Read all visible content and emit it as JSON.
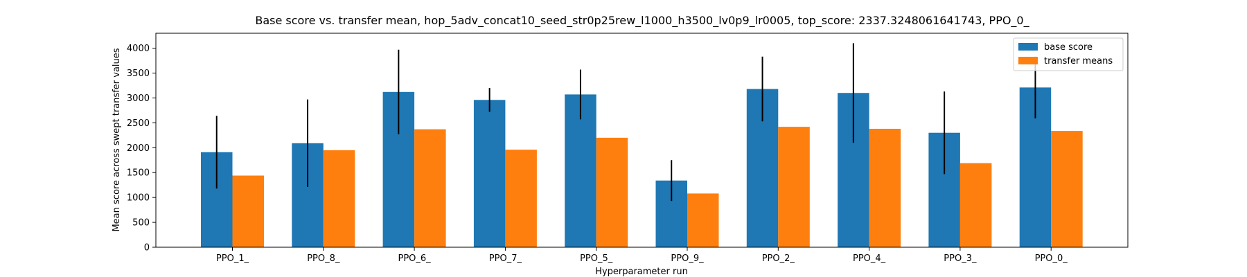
{
  "chart_data": {
    "type": "bar",
    "title": "Base score vs. transfer mean, hop_5adv_concat10_seed_str0p25rew_l1000_h3500_lv0p9_lr0005, top_score: 2337.3248061641743, PPO_0_",
    "xlabel": "Hyperparameter run",
    "ylabel": "Mean score across swept transfer values",
    "ylim": [
      0,
      4300
    ],
    "yticks": [
      0,
      500,
      1000,
      1500,
      2000,
      2500,
      3000,
      3500,
      4000
    ],
    "categories": [
      "PPO_1_",
      "PPO_8_",
      "PPO_6_",
      "PPO_7_",
      "PPO_5_",
      "PPO_9_",
      "PPO_2_",
      "PPO_4_",
      "PPO_3_",
      "PPO_0_"
    ],
    "series": [
      {
        "name": "base score",
        "color": "#1f77b4",
        "values": [
          1910,
          2090,
          3120,
          2960,
          3070,
          1340,
          3180,
          3100,
          2300,
          3210
        ],
        "error": [
          730,
          880,
          850,
          240,
          500,
          410,
          650,
          1000,
          830,
          620
        ]
      },
      {
        "name": "transfer means",
        "color": "#ff7f0e",
        "values": [
          1440,
          1950,
          2370,
          1960,
          2200,
          1080,
          2420,
          2380,
          1690,
          2337
        ]
      }
    ],
    "legend_position": "top-right",
    "grid": false
  }
}
